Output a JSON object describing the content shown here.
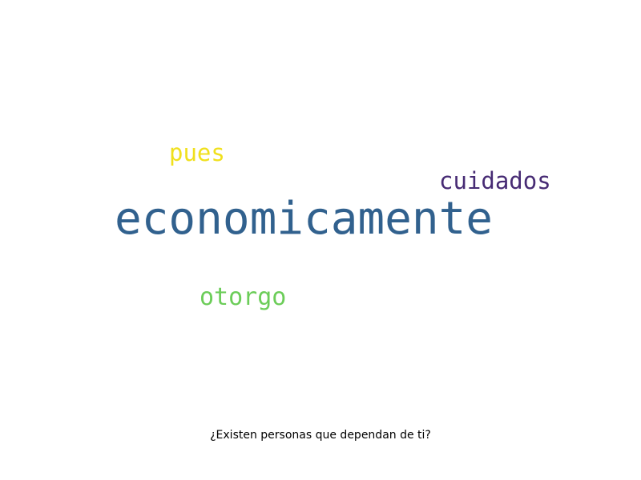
{
  "cloud": {
    "words": [
      {
        "text": "economicamente",
        "color": "#31618e"
      },
      {
        "text": "cuidados",
        "color": "#472b74"
      },
      {
        "text": "pues",
        "color": "#f0e01d"
      },
      {
        "text": "otorgo",
        "color": "#6ccd59"
      }
    ]
  },
  "caption": "¿Existen personas que dependan de ti?"
}
